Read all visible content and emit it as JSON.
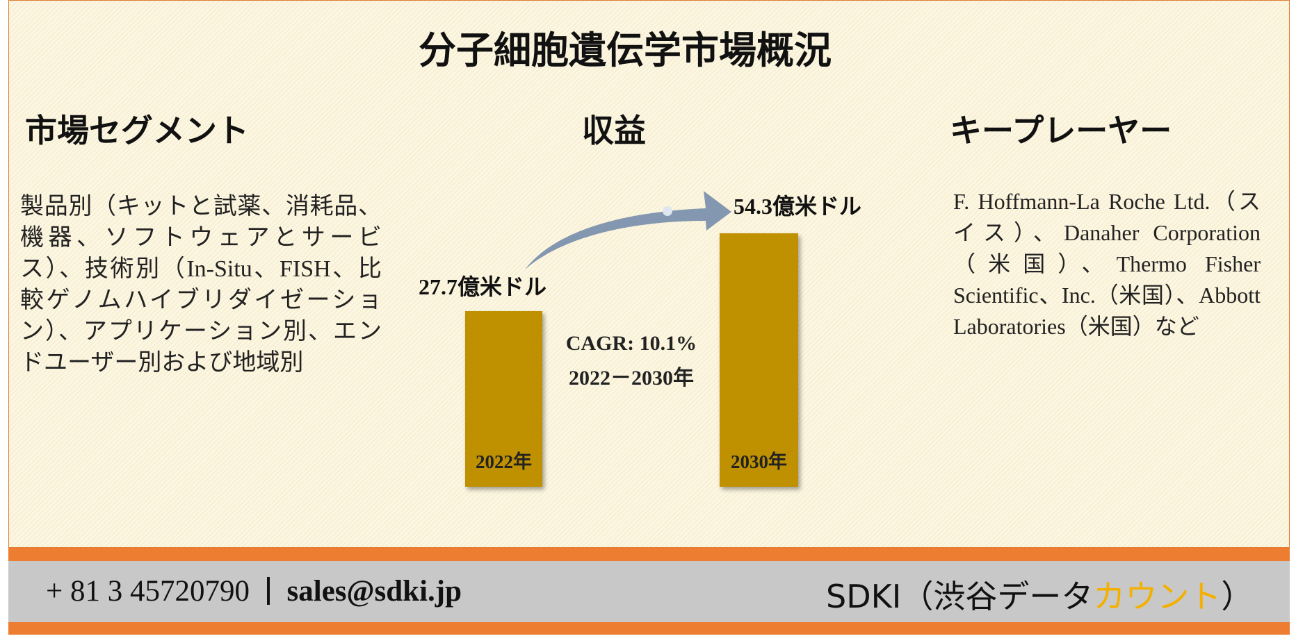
{
  "header": {
    "title": "分子細胞遺伝学市場概況"
  },
  "segments": {
    "heading": "市場セグメント",
    "text": "製品別（キットと試薬、消耗品、機器、ソフトウェアとサービス）、技術別（In-Situ、FISH、比較ゲノムハイブリダイゼーション）、アプリケーション別、エンドユーザー別および地域別"
  },
  "revenue": {
    "heading": "収益",
    "bars": [
      {
        "year": "2022年",
        "label": "27.7億米ドル"
      },
      {
        "year": "2030年",
        "label": "54.3億米ドル"
      }
    ],
    "cagr": "CAGR: 10.1%",
    "period": "2022－2030年"
  },
  "players": {
    "heading": "キープレーヤー",
    "text": "F. Hoffmann-La Roche Ltd.（スイス）、Danaher Corporation（米国）、Thermo Fisher Scientific、Inc.（米国）、Abbott Laboratories（米国）など"
  },
  "footer": {
    "phone": "+ 81 3 45720790",
    "email": "sales@sdki.jp",
    "brand": [
      "SDKI（渋谷データ",
      "カウント",
      "）"
    ]
  }
}
